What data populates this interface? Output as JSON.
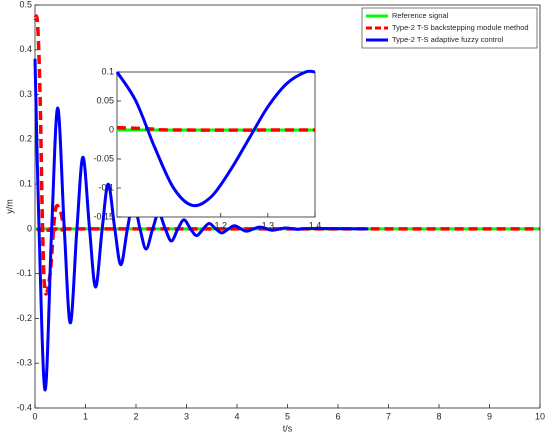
{
  "chart_data": [
    {
      "type": "line",
      "xlabel": "t/s",
      "ylabel": "y/m",
      "xlim": [
        0,
        10
      ],
      "xticks": [
        0,
        1,
        2,
        3,
        4,
        5,
        6,
        7,
        8,
        9,
        10
      ],
      "ylim": [
        -0.4,
        0.5
      ],
      "yticks": [
        -0.4,
        -0.3,
        -0.2,
        -0.1,
        0,
        0.1,
        0.2,
        0.3,
        0.4,
        0.5
      ],
      "legend": "upper right",
      "series": [
        {
          "name": "Reference signal",
          "color": "#00ff00",
          "linestyle": "solid",
          "x": [
            0,
            10
          ],
          "values": [
            0,
            0
          ]
        },
        {
          "name": "Type-2 T-S backstepping module method",
          "color": "#ff0000",
          "linestyle": "dashed",
          "x": [
            0,
            0.05,
            0.1,
            0.15,
            0.2,
            0.3,
            0.4,
            0.5,
            0.6,
            0.8,
            10
          ],
          "values": [
            0.47,
            0.46,
            0.3,
            0,
            -0.14,
            -0.1,
            0.04,
            0.04,
            0,
            0,
            0
          ]
        },
        {
          "name": "Type-2 T-S adaptive fuzzy control",
          "color": "#0000ff",
          "linestyle": "solid",
          "x": [
            0,
            0.08,
            0.2,
            0.33,
            0.45,
            0.58,
            0.7,
            0.83,
            0.95,
            1.08,
            1.2,
            1.33,
            1.45,
            1.58,
            1.7,
            1.83,
            1.95,
            2.08,
            2.2,
            2.33,
            2.45,
            2.58,
            2.7,
            2.83,
            2.95,
            3.08,
            3.2,
            3.33,
            3.45,
            3.58,
            3.7,
            3.83,
            3.95,
            4.08,
            4.2,
            4.45,
            4.7,
            4.95,
            5.2,
            5.45,
            6.6
          ],
          "values": [
            0.38,
            0,
            -0.36,
            0,
            0.27,
            0,
            -0.21,
            0,
            0.16,
            0,
            -0.13,
            0,
            0.1,
            0,
            -0.08,
            0,
            0.06,
            0,
            -0.045,
            0,
            0.035,
            0,
            -0.027,
            0,
            0.02,
            0,
            -0.015,
            0,
            0.012,
            0,
            -0.009,
            0,
            0.007,
            0,
            -0.005,
            0.004,
            -0.003,
            0.002,
            -0.001,
            0.001,
            0
          ]
        }
      ]
    },
    {
      "type": "line",
      "xlim": [
        0.98,
        1.4
      ],
      "xticks": [
        1.2,
        1.3,
        1.4
      ],
      "ylim": [
        -0.15,
        0.1
      ],
      "yticks": [
        -0.15,
        -0.1,
        -0.05,
        0,
        0.05,
        0.1
      ],
      "series": [
        {
          "color": "#00ff00",
          "linestyle": "solid",
          "x": [
            0.98,
            1.4
          ],
          "values": [
            0,
            0
          ]
        },
        {
          "color": "#ff0000",
          "linestyle": "dashed",
          "x": [
            0.98,
            1.05,
            1.1,
            1.4
          ],
          "values": [
            0.004,
            0.002,
            0,
            0
          ]
        },
        {
          "color": "#0000ff",
          "linestyle": "solid",
          "x": [
            0.98,
            1.02,
            1.06,
            1.1,
            1.14,
            1.18,
            1.22,
            1.26,
            1.3,
            1.34,
            1.38,
            1.4
          ],
          "values": [
            0.1,
            0.05,
            -0.03,
            -0.1,
            -0.13,
            -0.115,
            -0.07,
            -0.015,
            0.04,
            0.08,
            0.1,
            0.1
          ]
        }
      ]
    }
  ]
}
